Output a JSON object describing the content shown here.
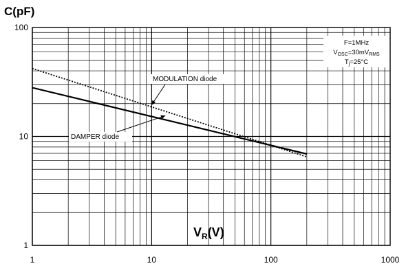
{
  "chart_data": {
    "type": "line",
    "y_axis_title": "C(pF)",
    "x_axis_title": {
      "main": "V",
      "sub": "R",
      "tail": "(V)"
    },
    "x_scale": "log",
    "y_scale": "log",
    "xlim": [
      1,
      1000
    ],
    "ylim": [
      1,
      100
    ],
    "grid": true,
    "x_ticks": [
      {
        "value": 1,
        "label": "1"
      },
      {
        "value": 10,
        "label": "10"
      },
      {
        "value": 100,
        "label": "100"
      },
      {
        "value": 1000,
        "label": "1000"
      }
    ],
    "y_ticks": [
      {
        "value": 1,
        "label": "1"
      },
      {
        "value": 10,
        "label": "10"
      },
      {
        "value": 100,
        "label": "100"
      }
    ],
    "conditions": [
      {
        "main": "F=1MHz"
      },
      {
        "main": "V",
        "sub": "OSC",
        "main2": "=30mV",
        "sub2": "RMS"
      },
      {
        "main": "T",
        "sub": "j",
        "main2": "=25°C"
      }
    ],
    "series": [
      {
        "name": "MODULATION diode",
        "style": "dotted",
        "color": "#000000",
        "x": [
          1,
          200
        ],
        "y": [
          42,
          6.5
        ]
      },
      {
        "name": "DAMPER diode",
        "style": "solid",
        "color": "#000000",
        "x": [
          1,
          200
        ],
        "y": [
          28,
          6.9
        ]
      }
    ],
    "annotations": [
      {
        "text": "MODULATION diode",
        "series": "MODULATION diode",
        "points_to": [
          10,
          19.5
        ]
      },
      {
        "text": "DAMPER diode",
        "series": "DAMPER diode",
        "points_to": [
          13,
          15.5
        ]
      }
    ]
  }
}
